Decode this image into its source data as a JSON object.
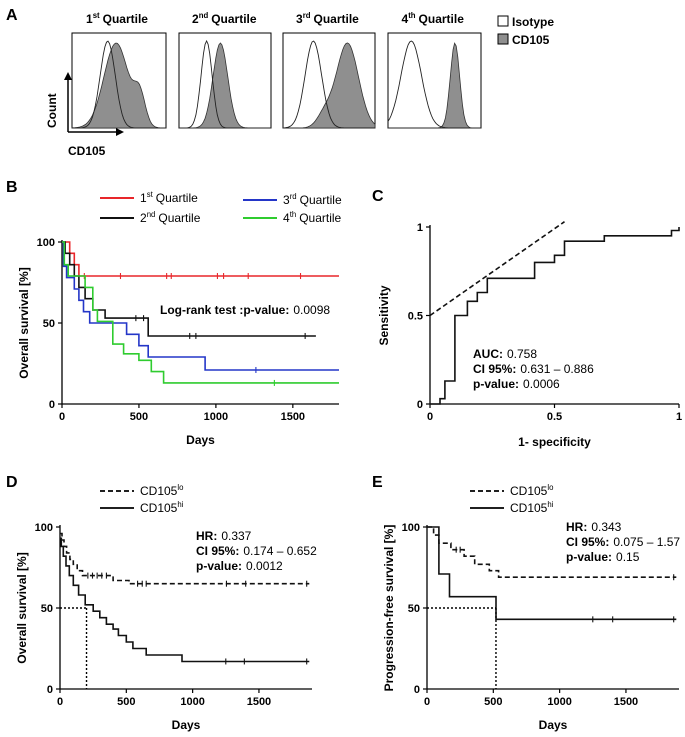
{
  "panels": {
    "A": {
      "letter": "A",
      "quartile_titles": [
        {
          "num": "1",
          "sup": "st",
          "rest": "Quartile"
        },
        {
          "num": "2",
          "sup": "nd",
          "rest": "Quartile"
        },
        {
          "num": "3",
          "sup": "rd",
          "rest": "Quartile"
        },
        {
          "num": "4",
          "sup": "th",
          "rest": "Quartile"
        }
      ],
      "legend": [
        {
          "label": "Isotype",
          "fill": "#ffffff"
        },
        {
          "label": "CD105",
          "fill": "#8f8f8f"
        }
      ],
      "ylabel": "Count",
      "xlabel": "CD105"
    },
    "B": {
      "letter": "B",
      "legend": [
        {
          "num": "1",
          "sup": "st",
          "rest": "Quartile",
          "color": "#e8262a"
        },
        {
          "num": "2",
          "sup": "nd",
          "rest": "Quartile",
          "color": "#111111"
        },
        {
          "num": "3",
          "sup": "rd",
          "rest": "Quartile",
          "color": "#2436c8"
        },
        {
          "num": "4",
          "sup": "th",
          "rest": "Quartile",
          "color": "#2fcc2f"
        }
      ],
      "annotation_bold": "Log-rank test :p-value:",
      "annotation_value": "0.0098"
    },
    "C": {
      "letter": "C",
      "stats": [
        {
          "label": "AUC:",
          "value": "0.758"
        },
        {
          "label": "CI 95%:",
          "value": "0.631 – 0.886"
        },
        {
          "label": "p-value:",
          "value": "0.0006"
        }
      ]
    },
    "D": {
      "letter": "D",
      "legend": [
        {
          "base": "CD105",
          "sup": "lo",
          "dash": true
        },
        {
          "base": "CD105",
          "sup": "hi",
          "dash": false
        }
      ],
      "stats": [
        {
          "label": "HR:",
          "value": "0.337"
        },
        {
          "label": "CI 95%:",
          "value": "0.174 – 0.652"
        },
        {
          "label": "p-value:",
          "value": "0.0012"
        }
      ]
    },
    "E": {
      "letter": "E",
      "legend": [
        {
          "base": "CD105",
          "sup": "lo",
          "dash": true
        },
        {
          "base": "CD105",
          "sup": "hi",
          "dash": false
        }
      ],
      "stats": [
        {
          "label": "HR:",
          "value": "0.343"
        },
        {
          "label": "CI 95%:",
          "value": "0.075 – 1.57"
        },
        {
          "label": "p-value:",
          "value": "0.15"
        }
      ]
    }
  },
  "chart_data": [
    {
      "panel": "B",
      "type": "line",
      "title": "",
      "xlabel": "Days",
      "ylabel": "Overall survival [%]",
      "xlim": [
        0,
        1800
      ],
      "ylim": [
        0,
        100
      ],
      "xticks": [
        0,
        500,
        1000,
        1500
      ],
      "yticks": [
        0,
        50,
        100
      ],
      "series": [
        {
          "name": "1st Quartile",
          "color": "#e8262a",
          "steps": [
            [
              0,
              100
            ],
            [
              50,
              100
            ],
            [
              50,
              93
            ],
            [
              80,
              93
            ],
            [
              80,
              86
            ],
            [
              110,
              86
            ],
            [
              110,
              79
            ],
            [
              1800,
              79
            ]
          ],
          "censors": [
            [
              145,
              79
            ],
            [
              380,
              79
            ],
            [
              680,
              79
            ],
            [
              710,
              79
            ],
            [
              1010,
              79
            ],
            [
              1050,
              79
            ],
            [
              1210,
              79
            ],
            [
              1550,
              79
            ]
          ]
        },
        {
          "name": "2nd Quartile",
          "color": "#111111",
          "steps": [
            [
              0,
              100
            ],
            [
              20,
              100
            ],
            [
              20,
              93
            ],
            [
              50,
              93
            ],
            [
              50,
              86
            ],
            [
              80,
              86
            ],
            [
              80,
              79
            ],
            [
              110,
              79
            ],
            [
              110,
              72
            ],
            [
              150,
              72
            ],
            [
              150,
              65
            ],
            [
              200,
              65
            ],
            [
              200,
              58
            ],
            [
              280,
              58
            ],
            [
              280,
              53
            ],
            [
              560,
              53
            ],
            [
              560,
              42
            ],
            [
              1650,
              42
            ]
          ],
          "censors": [
            [
              480,
              53
            ],
            [
              530,
              53
            ],
            [
              830,
              42
            ],
            [
              870,
              42
            ],
            [
              1580,
              42
            ]
          ]
        },
        {
          "name": "3rd Quartile",
          "color": "#2436c8",
          "steps": [
            [
              0,
              100
            ],
            [
              10,
              100
            ],
            [
              10,
              85
            ],
            [
              30,
              85
            ],
            [
              30,
              78
            ],
            [
              80,
              78
            ],
            [
              80,
              71
            ],
            [
              110,
              71
            ],
            [
              110,
              64
            ],
            [
              140,
              64
            ],
            [
              140,
              57
            ],
            [
              180,
              57
            ],
            [
              180,
              50
            ],
            [
              420,
              50
            ],
            [
              420,
              43
            ],
            [
              500,
              43
            ],
            [
              500,
              36
            ],
            [
              560,
              36
            ],
            [
              560,
              29
            ],
            [
              930,
              29
            ],
            [
              930,
              21
            ],
            [
              1800,
              21
            ]
          ],
          "censors": [
            [
              1260,
              21
            ]
          ]
        },
        {
          "name": "4th Quartile",
          "color": "#2fcc2f",
          "steps": [
            [
              0,
              100
            ],
            [
              15,
              100
            ],
            [
              15,
              86
            ],
            [
              40,
              86
            ],
            [
              40,
              79
            ],
            [
              150,
              79
            ],
            [
              150,
              72
            ],
            [
              200,
              72
            ],
            [
              200,
              58
            ],
            [
              230,
              58
            ],
            [
              230,
              51
            ],
            [
              330,
              51
            ],
            [
              330,
              37
            ],
            [
              400,
              37
            ],
            [
              400,
              31
            ],
            [
              500,
              31
            ],
            [
              500,
              27
            ],
            [
              580,
              27
            ],
            [
              580,
              20
            ],
            [
              660,
              20
            ],
            [
              660,
              13
            ],
            [
              1800,
              13
            ]
          ],
          "censors": [
            [
              1380,
              13
            ]
          ]
        }
      ]
    },
    {
      "panel": "C",
      "type": "line",
      "title": "",
      "xlabel": "1- specificity",
      "ylabel": "Sensitivity",
      "xlim": [
        0,
        1
      ],
      "ylim": [
        0,
        1
      ],
      "xticks": [
        0,
        0.5,
        1
      ],
      "xtick_labels": [
        "0",
        "0.5",
        "1"
      ],
      "yticks": [
        0,
        0.5,
        1
      ],
      "yticklabels": [
        "0",
        "0.5",
        "1"
      ],
      "series": [
        {
          "name": "ROC",
          "color": "#111111",
          "dashed": false,
          "points": [
            [
              0,
              0
            ],
            [
              0.04,
              0
            ],
            [
              0.04,
              0.03
            ],
            [
              0.06,
              0.03
            ],
            [
              0.06,
              0.13
            ],
            [
              0.1,
              0.13
            ],
            [
              0.1,
              0.5
            ],
            [
              0.15,
              0.5
            ],
            [
              0.15,
              0.58
            ],
            [
              0.19,
              0.58
            ],
            [
              0.19,
              0.63
            ],
            [
              0.23,
              0.63
            ],
            [
              0.23,
              0.71
            ],
            [
              0.42,
              0.71
            ],
            [
              0.42,
              0.8
            ],
            [
              0.5,
              0.8
            ],
            [
              0.5,
              0.84
            ],
            [
              0.54,
              0.84
            ],
            [
              0.54,
              0.92
            ],
            [
              0.7,
              0.92
            ],
            [
              0.7,
              0.95
            ],
            [
              0.97,
              0.95
            ],
            [
              0.97,
              0.98
            ],
            [
              1,
              0.98
            ],
            [
              1,
              1
            ]
          ]
        },
        {
          "name": "reference",
          "color": "#111111",
          "dashed": true,
          "points": [
            [
              0,
              0.5
            ],
            [
              0.54,
              1.03
            ]
          ]
        }
      ]
    },
    {
      "panel": "D",
      "type": "line",
      "title": "",
      "xlabel": "Days",
      "ylabel": "Overall survival [%]",
      "xlim": [
        0,
        1900
      ],
      "ylim": [
        0,
        100
      ],
      "xticks": [
        0,
        500,
        1000,
        1500
      ],
      "yticks": [
        0,
        50,
        100
      ],
      "series": [
        {
          "name": "CD105lo",
          "color": "#111111",
          "dashed": true,
          "steps": [
            [
              0,
              96
            ],
            [
              15,
              96
            ],
            [
              15,
              92
            ],
            [
              30,
              92
            ],
            [
              30,
              88
            ],
            [
              50,
              88
            ],
            [
              50,
              84
            ],
            [
              75,
              84
            ],
            [
              75,
              80
            ],
            [
              100,
              80
            ],
            [
              100,
              77
            ],
            [
              130,
              77
            ],
            [
              130,
              73
            ],
            [
              170,
              73
            ],
            [
              170,
              70
            ],
            [
              400,
              70
            ],
            [
              400,
              67
            ],
            [
              520,
              67
            ],
            [
              520,
              65
            ],
            [
              1880,
              65
            ]
          ],
          "censors": [
            [
              210,
              70
            ],
            [
              245,
              70
            ],
            [
              280,
              70
            ],
            [
              315,
              70
            ],
            [
              350,
              70
            ],
            [
              585,
              65
            ],
            [
              620,
              65
            ],
            [
              650,
              65
            ],
            [
              1255,
              65
            ],
            [
              1400,
              65
            ],
            [
              1860,
              65
            ]
          ]
        },
        {
          "name": "CD105hi",
          "color": "#111111",
          "dashed": false,
          "steps": [
            [
              0,
              93
            ],
            [
              10,
              93
            ],
            [
              10,
              88
            ],
            [
              25,
              88
            ],
            [
              25,
              82
            ],
            [
              45,
              82
            ],
            [
              45,
              76
            ],
            [
              70,
              76
            ],
            [
              70,
              70
            ],
            [
              100,
              70
            ],
            [
              100,
              64
            ],
            [
              140,
              64
            ],
            [
              140,
              58
            ],
            [
              190,
              58
            ],
            [
              190,
              52
            ],
            [
              250,
              52
            ],
            [
              250,
              48
            ],
            [
              300,
              48
            ],
            [
              300,
              44
            ],
            [
              350,
              44
            ],
            [
              350,
              40
            ],
            [
              400,
              40
            ],
            [
              400,
              37
            ],
            [
              440,
              37
            ],
            [
              440,
              33
            ],
            [
              500,
              33
            ],
            [
              500,
              29
            ],
            [
              550,
              29
            ],
            [
              550,
              25
            ],
            [
              650,
              25
            ],
            [
              650,
              21
            ],
            [
              920,
              21
            ],
            [
              920,
              17
            ],
            [
              1880,
              17
            ]
          ],
          "censors": [
            [
              1250,
              17
            ],
            [
              1390,
              17
            ],
            [
              1860,
              17
            ]
          ]
        }
      ],
      "median_lines": [
        {
          "x": 200,
          "y": 50
        }
      ]
    },
    {
      "panel": "E",
      "type": "line",
      "title": "",
      "xlabel": "Days",
      "ylabel": "Progression-free survival [%]",
      "xlim": [
        0,
        1900
      ],
      "ylim": [
        0,
        100
      ],
      "xticks": [
        0,
        500,
        1000,
        1500
      ],
      "yticks": [
        0,
        50,
        100
      ],
      "series": [
        {
          "name": "CD105lo",
          "color": "#111111",
          "dashed": true,
          "steps": [
            [
              0,
              100
            ],
            [
              50,
              100
            ],
            [
              50,
              95
            ],
            [
              90,
              95
            ],
            [
              90,
              90
            ],
            [
              180,
              90
            ],
            [
              180,
              86
            ],
            [
              280,
              86
            ],
            [
              280,
              82
            ],
            [
              360,
              82
            ],
            [
              360,
              77
            ],
            [
              470,
              77
            ],
            [
              470,
              73
            ],
            [
              540,
              73
            ],
            [
              540,
              69
            ],
            [
              1880,
              69
            ]
          ],
          "censors": [
            [
              220,
              86
            ],
            [
              250,
              86
            ],
            [
              1860,
              69
            ]
          ]
        },
        {
          "name": "CD105hi",
          "color": "#111111",
          "dashed": false,
          "steps": [
            [
              0,
              100
            ],
            [
              90,
              100
            ],
            [
              90,
              71
            ],
            [
              170,
              71
            ],
            [
              170,
              57
            ],
            [
              520,
              57
            ],
            [
              520,
              43
            ],
            [
              1880,
              43
            ]
          ],
          "censors": [
            [
              1250,
              43
            ],
            [
              1400,
              43
            ],
            [
              1860,
              43
            ]
          ]
        }
      ],
      "median_lines": [
        {
          "x": 520,
          "y": 50
        }
      ]
    }
  ]
}
